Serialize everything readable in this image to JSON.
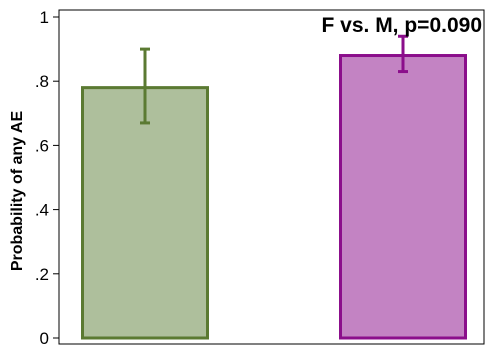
{
  "chart_data": {
    "type": "bar",
    "title": "",
    "annotation": "F vs. M, p=0.090",
    "xlabel": "",
    "ylabel": "Probability of any AE",
    "ylim": [
      0,
      1
    ],
    "y_ticks": [
      {
        "value": 0,
        "label": "0"
      },
      {
        "value": 0.2,
        "label": ".2"
      },
      {
        "value": 0.4,
        "label": ".4"
      },
      {
        "value": 0.6,
        "label": ".6"
      },
      {
        "value": 0.8,
        "label": ".8"
      },
      {
        "value": 1,
        "label": "1"
      }
    ],
    "grid": false,
    "bars": [
      {
        "value": 0.78,
        "ci_low": 0.67,
        "ci_high": 0.9,
        "fill": "#aebf9c",
        "stroke": "#5b7a32"
      },
      {
        "value": 0.88,
        "ci_low": 0.83,
        "ci_high": 0.94,
        "fill": "#c383c3",
        "stroke": "#8b0e8b"
      }
    ]
  }
}
